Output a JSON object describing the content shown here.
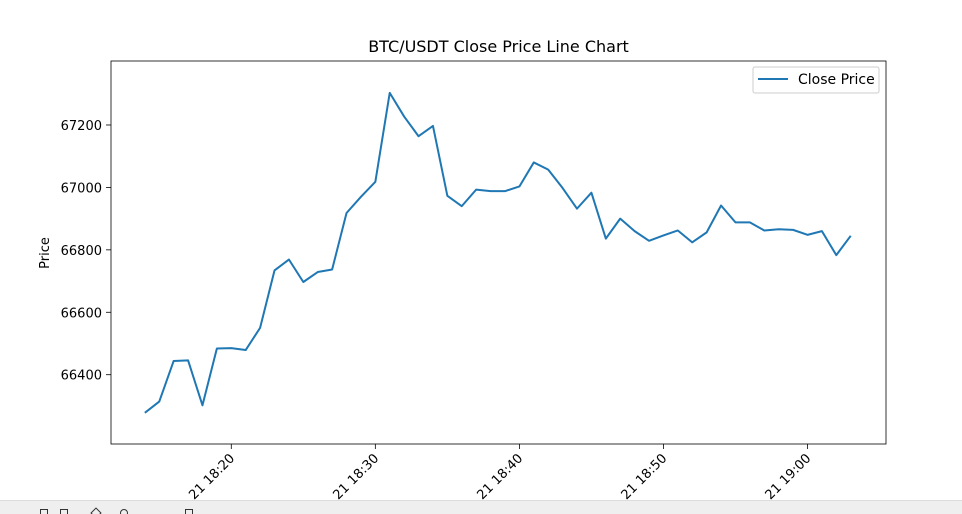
{
  "chart_data": {
    "type": "line",
    "title": "BTC/USDT Close Price Line Chart",
    "xlabel": "",
    "ylabel": "Price",
    "x_minutes": [
      14,
      15,
      16,
      17,
      18,
      19,
      20,
      21,
      22,
      23,
      24,
      25,
      26,
      27,
      28,
      29,
      30,
      31,
      32,
      33,
      34,
      35,
      36,
      37,
      38,
      39,
      40,
      41,
      42,
      43,
      44,
      45,
      46,
      47,
      48,
      49,
      50,
      51,
      52,
      53,
      54,
      55,
      56,
      57,
      58,
      59,
      60,
      61,
      62,
      63
    ],
    "xlim": [
      11.65,
      65.45
    ],
    "xticks": [
      {
        "minute": 20,
        "label": "21 18:20"
      },
      {
        "minute": 30,
        "label": "21 18:30"
      },
      {
        "minute": 40,
        "label": "21 18:40"
      },
      {
        "minute": 50,
        "label": "21 18:50"
      },
      {
        "minute": 60,
        "label": "21 19:00"
      }
    ],
    "ylim": [
      66178,
      67405
    ],
    "yticks": [
      66400,
      66600,
      66800,
      67000,
      67200
    ],
    "series": [
      {
        "name": "Close Price",
        "color": "#1f77b4",
        "values": [
          66278,
          66314,
          66444,
          66446,
          66302,
          66484,
          66485,
          66479,
          66550,
          66734,
          66769,
          66697,
          66729,
          66737,
          66918,
          66970,
          67018,
          67303,
          67227,
          67164,
          67197,
          66973,
          66940,
          66993,
          66988,
          66988,
          67003,
          67080,
          67057,
          66998,
          66932,
          66983,
          66836,
          66900,
          66860,
          66829,
          66846,
          66862,
          66824,
          66856,
          66942,
          66888,
          66888,
          66862,
          66866,
          66864,
          66848,
          66860,
          66783,
          66845
        ]
      }
    ],
    "legend": {
      "position": "top-right",
      "entries": [
        "Close Price"
      ]
    },
    "grid": false
  },
  "toolbar": {
    "icons": [
      "home-icon",
      "back-icon",
      "forward-icon",
      "pan-icon",
      "zoom-icon",
      "save-icon"
    ]
  }
}
